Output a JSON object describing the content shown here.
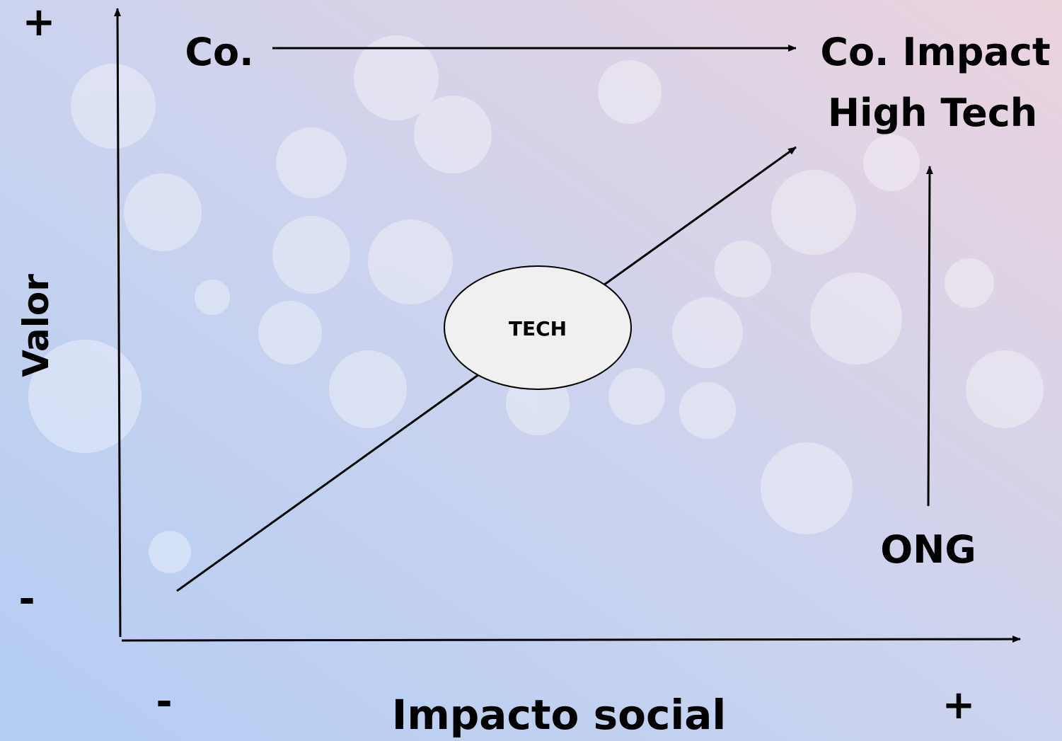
{
  "diagram": {
    "y_axis": {
      "label": "Valor",
      "high": "+",
      "low": "-"
    },
    "x_axis": {
      "label": "Impacto social",
      "low": "-",
      "high": "+"
    },
    "nodes": [
      {
        "label": "Co."
      },
      {
        "label": "Co. Impact"
      },
      {
        "label": "High Tech"
      },
      {
        "label": "TECH"
      },
      {
        "label": "ONG"
      }
    ]
  }
}
